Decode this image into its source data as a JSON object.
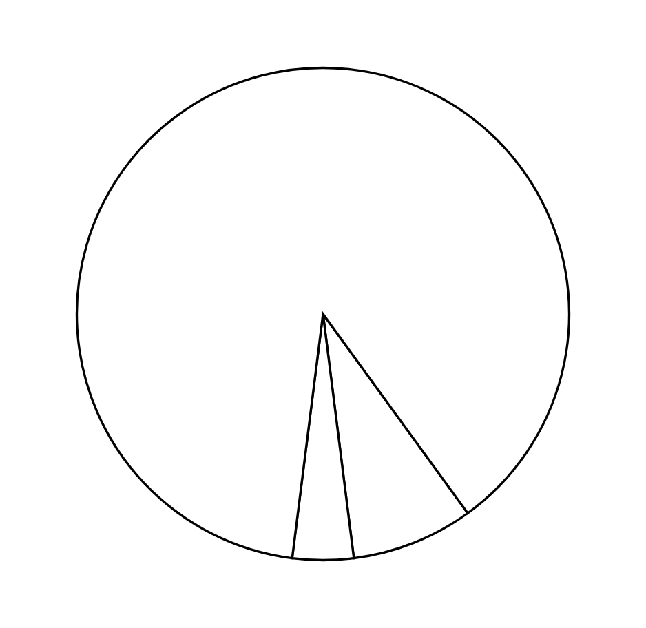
{
  "chart_data": {
    "type": "pie",
    "categories": [
      null,
      null,
      null
    ],
    "values": [
      8,
      4,
      88
    ],
    "colors": [
      "#ffffff",
      "#ffffff",
      "#ffffff"
    ]
  }
}
